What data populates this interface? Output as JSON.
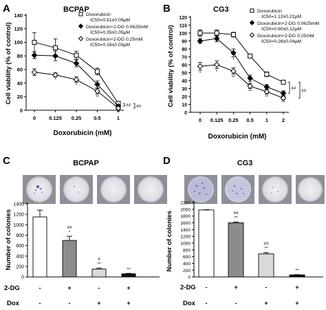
{
  "panels": {
    "A": "A",
    "B": "B",
    "C": "C",
    "D": "D"
  },
  "chart_data": [
    {
      "id": "A",
      "type": "line",
      "title": "BCPAP",
      "xlabel": "Doxorubicin (mM)",
      "ylabel": "Cell viability (% of control)",
      "categories": [
        "0",
        "0.125",
        "0.25",
        "0.5",
        "1"
      ],
      "ylim": [
        0,
        140
      ],
      "yticks": [
        0,
        20,
        40,
        60,
        80,
        100,
        120,
        140
      ],
      "series": [
        {
          "name": "Doxorubicin",
          "ic50": "IC50=0.51±0.09μM",
          "marker": "square-open",
          "values": [
            100,
            92,
            81,
            57,
            10
          ],
          "errors": [
            14,
            13,
            6,
            5,
            3
          ],
          "significance": [
            "",
            "",
            "",
            "",
            "*"
          ]
        },
        {
          "name": "Doxorubicin+2-DG 0.0625mM",
          "ic50": "IC50=0.35±0.05μM",
          "marker": "diamond-filled",
          "values": [
            81,
            80,
            69,
            38,
            6
          ],
          "errors": [
            5,
            7,
            5,
            5,
            2
          ],
          "significance": [
            "",
            "",
            "",
            "*",
            ""
          ]
        },
        {
          "name": "Doxorubicin+2-DG 0.25mM",
          "ic50": "IC50=0.16±0.03μM",
          "marker": "diamond-open",
          "values": [
            56,
            52,
            45,
            28,
            3
          ],
          "errors": [
            5,
            3,
            4,
            4,
            2
          ],
          "significance": [
            "",
            "*",
            "*",
            "**",
            "**"
          ]
        }
      ],
      "bracket_labels": [
        "##",
        "##"
      ]
    },
    {
      "id": "B",
      "type": "line",
      "title": "CG3",
      "xlabel": "Doxorubicin (mM)",
      "ylabel": "Cell viability (% of control)",
      "categories": [
        "0",
        "0.125",
        "0.25",
        "0.5",
        "1",
        "2"
      ],
      "ylim": [
        0,
        120
      ],
      "yticks": [
        0,
        10,
        20,
        30,
        40,
        50,
        60,
        70,
        80,
        90,
        100,
        110,
        120
      ],
      "series": [
        {
          "name": "Doxorubicin",
          "ic50": "IC50=1.12±0.22μM",
          "marker": "square-open",
          "values": [
            100,
            100,
            98,
            71,
            48,
            38
          ],
          "errors": [
            4,
            4,
            3,
            2,
            3,
            2
          ],
          "significance": [
            "",
            "",
            "",
            "",
            "",
            ""
          ]
        },
        {
          "name": "Doxorubicin+2-DG 0.0625mM",
          "ic50": "IC50=0.60±0.12μM",
          "marker": "diamond-filled",
          "values": [
            90,
            93,
            75,
            43,
            32,
            24
          ],
          "errors": [
            3,
            4,
            5,
            4,
            3,
            3
          ],
          "significance": [
            "",
            "",
            "*",
            "*",
            "*",
            "*"
          ]
        },
        {
          "name": "Doxorubicin+2-DG 0.25mM",
          "ic50": "IC50=0.26±0.04μM",
          "marker": "diamond-open",
          "values": [
            58,
            60,
            52,
            33,
            26,
            18
          ],
          "errors": [
            5,
            5,
            4,
            3,
            3,
            2
          ],
          "significance": [
            "*",
            "*",
            "**",
            "**",
            "**",
            "**"
          ]
        }
      ],
      "bracket_labels": [
        "##",
        "##"
      ]
    },
    {
      "id": "C",
      "type": "bar",
      "title": "BCPAP",
      "ylabel": "Number of colonies",
      "ylim": [
        0,
        1400
      ],
      "yticks": [
        0,
        200,
        400,
        600,
        800,
        1000,
        1200,
        1400
      ],
      "row_labels": [
        "2-DG",
        "Dox"
      ],
      "rows": [
        [
          "-",
          "+",
          "-",
          "+"
        ],
        [
          "-",
          "-",
          "+",
          "+"
        ]
      ],
      "values": [
        1150,
        700,
        150,
        60
      ],
      "errors": [
        130,
        80,
        20,
        8
      ],
      "colors": [
        "#ffffff",
        "#8c8c8c",
        "#d9d9d9",
        "#111111"
      ],
      "annotations": [
        [],
        [
          "##",
          "*"
        ],
        [
          "#",
          "**"
        ],
        [
          "**"
        ]
      ]
    },
    {
      "id": "D",
      "type": "bar",
      "title": "CG3",
      "ylabel": "Number of colonies",
      "ylim": [
        0,
        2200
      ],
      "yticks": [
        0,
        200,
        400,
        600,
        800,
        1000,
        1200,
        1400,
        1600,
        1800,
        2000,
        2200
      ],
      "row_labels": [
        "2-DG",
        "Dox"
      ],
      "rows": [
        [
          "-",
          "+",
          "-",
          "+"
        ],
        [
          "-",
          "-",
          "+",
          "+"
        ]
      ],
      "values": [
        1980,
        1600,
        680,
        60
      ],
      "errors": [
        10,
        25,
        40,
        8
      ],
      "colors": [
        "#ffffff",
        "#8c8c8c",
        "#d9d9d9",
        "#111111"
      ],
      "annotations": [
        [],
        [
          "##",
          "**"
        ],
        [
          "##",
          "**"
        ],
        [
          "**"
        ]
      ]
    }
  ]
}
